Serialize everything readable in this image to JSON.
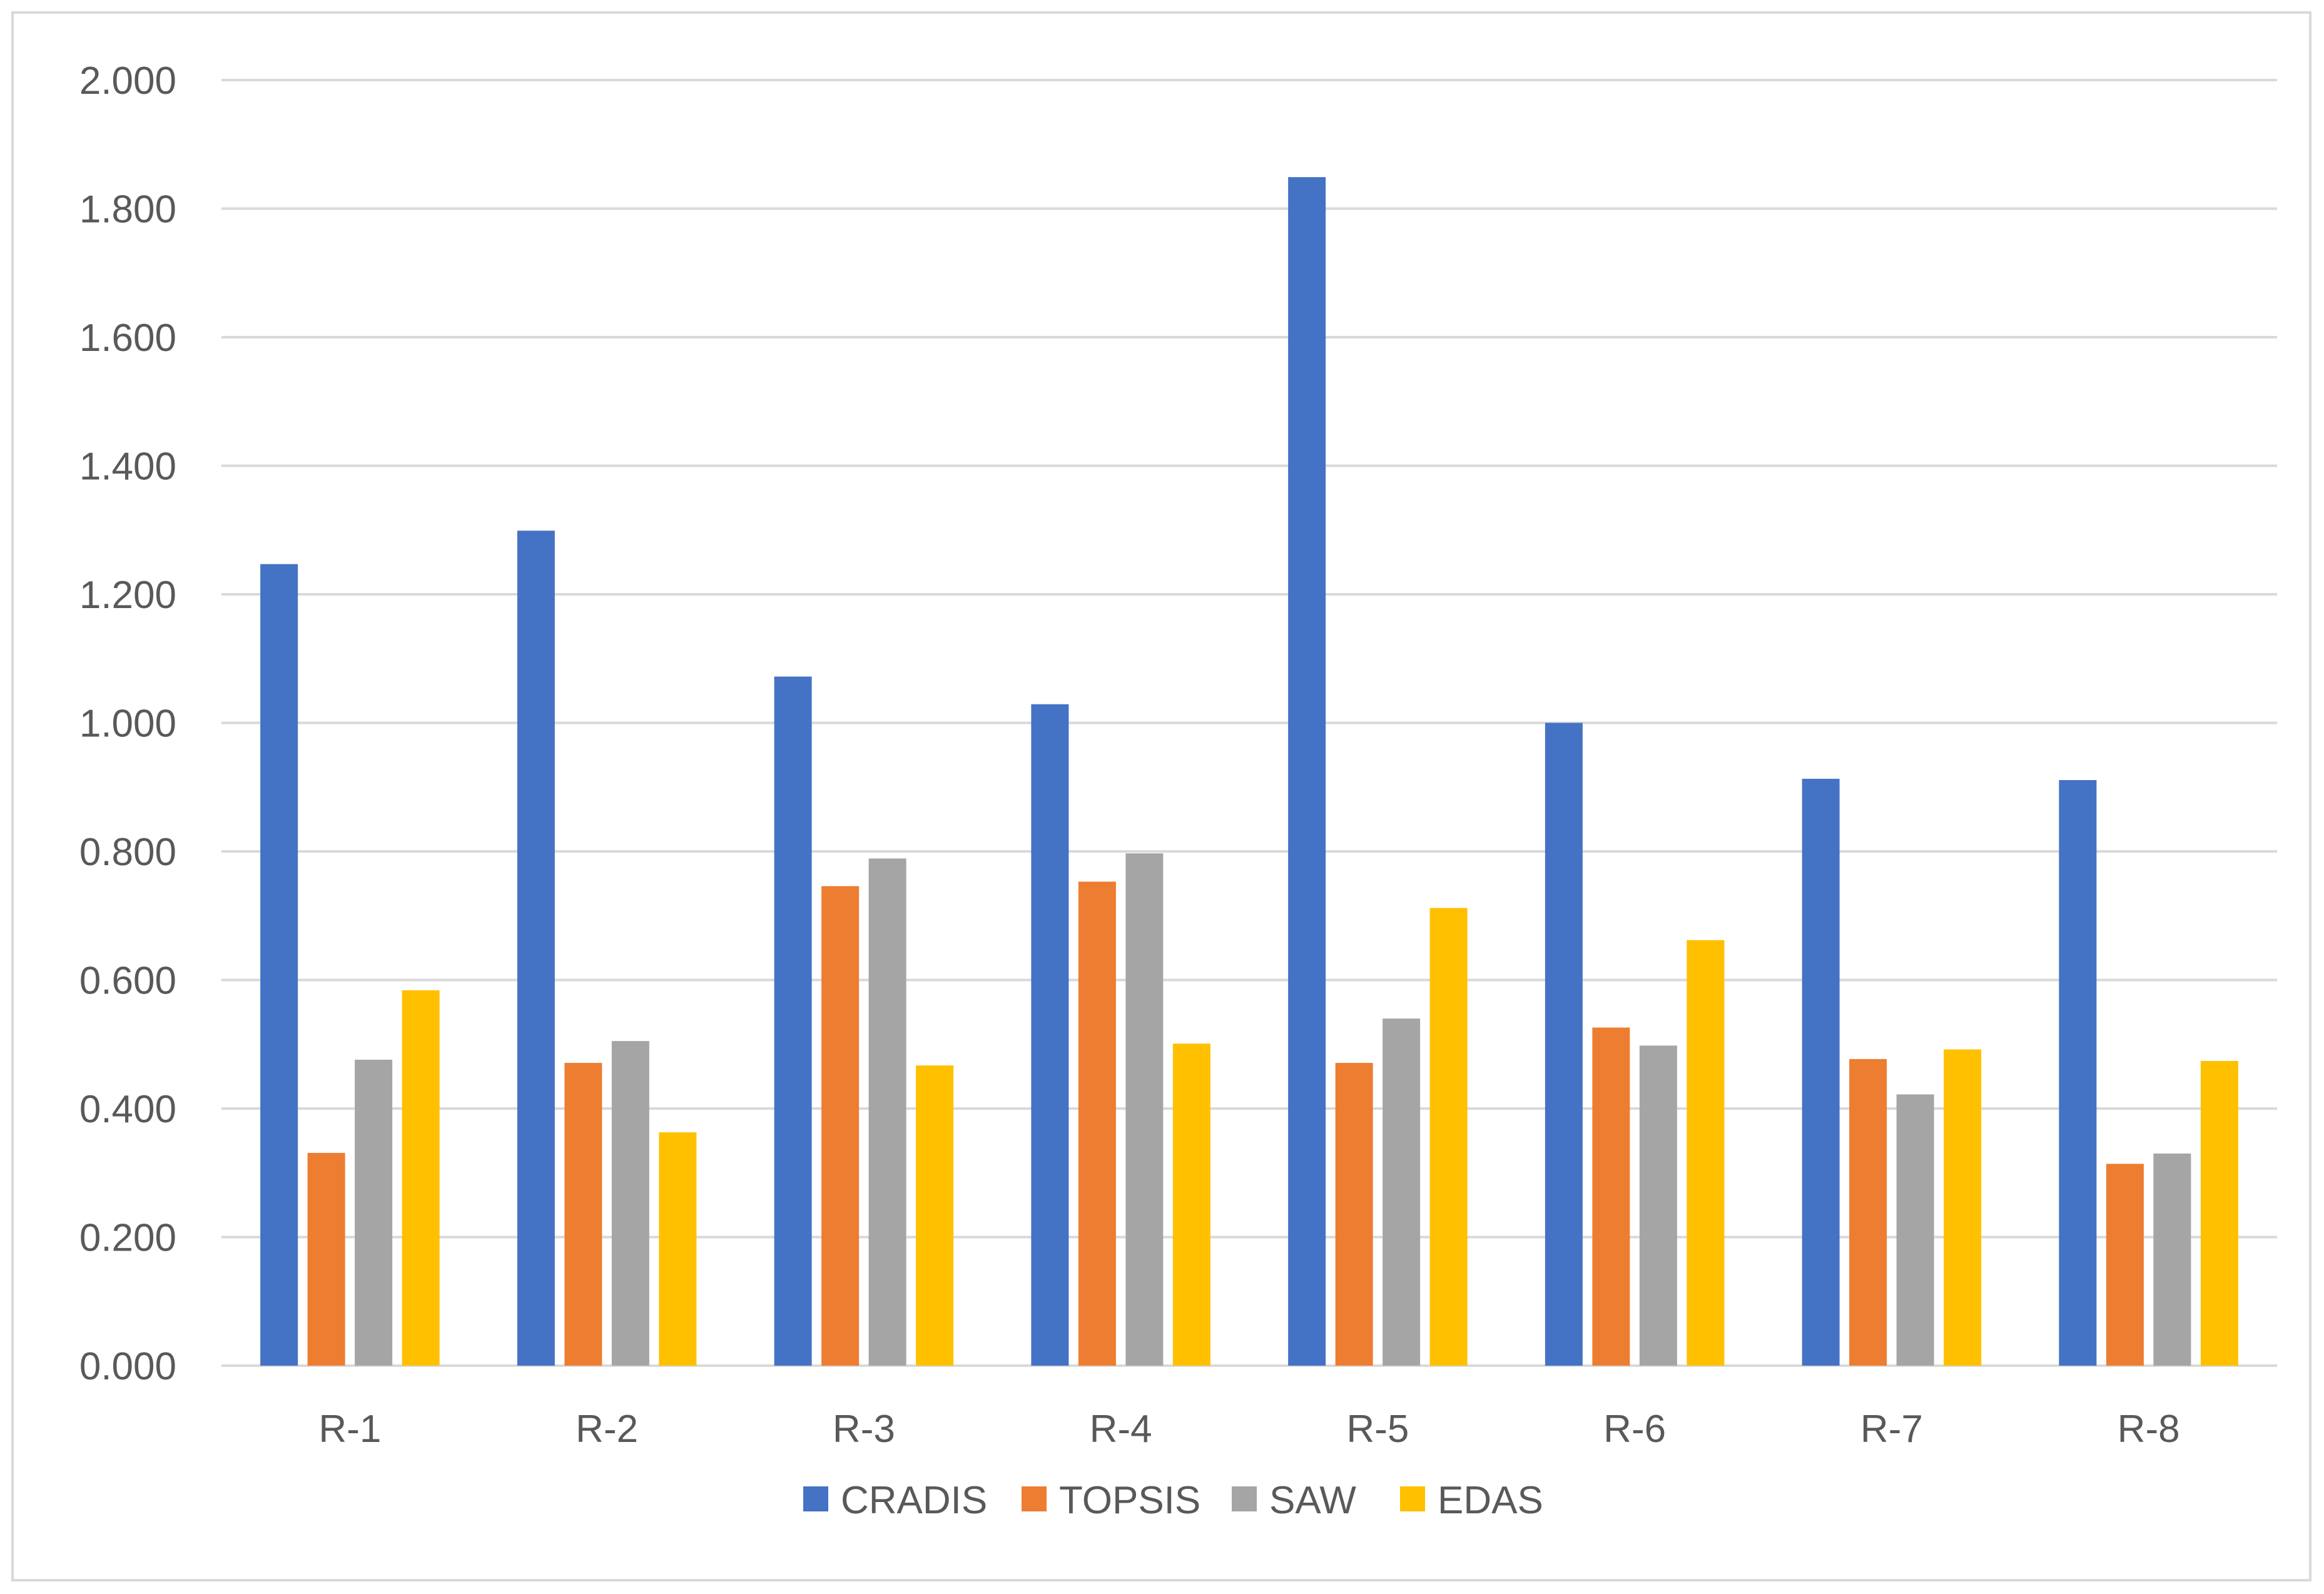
{
  "chart_data": {
    "type": "bar",
    "title": "",
    "xlabel": "",
    "ylabel": "",
    "categories": [
      "R-1",
      "R-2",
      "R-3",
      "R-4",
      "R-5",
      "R-6",
      "R-7",
      "R-8"
    ],
    "series": [
      {
        "name": "CRADIS",
        "color": "#4472C4",
        "values": [
          1.247,
          1.299,
          1.072,
          1.029,
          1.849,
          1.0,
          0.913,
          0.911
        ]
      },
      {
        "name": "TOPSIS",
        "color": "#ED7D31",
        "values": [
          0.331,
          0.471,
          0.746,
          0.753,
          0.471,
          0.526,
          0.477,
          0.314
        ]
      },
      {
        "name": "SAW",
        "color": "#A5A5A5",
        "values": [
          0.476,
          0.505,
          0.789,
          0.797,
          0.54,
          0.498,
          0.422,
          0.33
        ]
      },
      {
        "name": "EDAS",
        "color": "#FFC000",
        "values": [
          0.584,
          0.363,
          0.467,
          0.501,
          0.712,
          0.662,
          0.492,
          0.474
        ]
      }
    ],
    "ylim": [
      0,
      2
    ],
    "y_ticks": [
      0.0,
      0.2,
      0.4,
      0.6,
      0.8,
      1.0,
      1.2,
      1.4,
      1.6,
      1.8,
      2.0
    ],
    "y_tick_labels": [
      "0.000",
      "0.200",
      "0.400",
      "0.600",
      "0.800",
      "1.000",
      "1.200",
      "1.400",
      "1.600",
      "1.800",
      "2.000"
    ],
    "grid": true,
    "legend_position": "bottom"
  }
}
